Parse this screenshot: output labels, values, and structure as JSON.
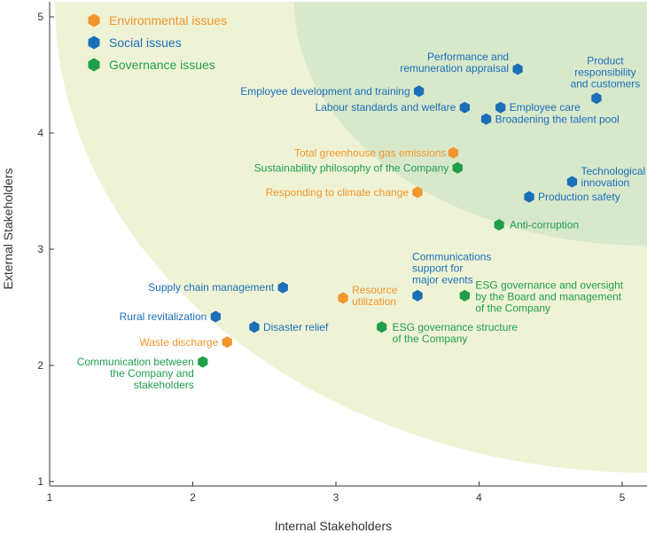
{
  "chart_data": {
    "type": "scatter",
    "title": "",
    "xlabel": "Internal Stakeholders",
    "ylabel": "External Stakeholders",
    "xlim": [
      1,
      5.2
    ],
    "ylim": [
      1,
      5.2
    ],
    "x_ticks": [
      "1",
      "2",
      "3",
      "4",
      "5"
    ],
    "y_ticks": [
      "1",
      "2",
      "3",
      "4",
      "5"
    ],
    "grid": false,
    "legend_position": "top-left",
    "colors": {
      "environmental": "#f0962c",
      "social": "#1a6fb8",
      "governance": "#1f9e4c",
      "zone_outer": "#eff3d6",
      "zone_inner": "#d8e8cb",
      "axis": "#333333"
    },
    "series": [
      {
        "name": "Environmental issues",
        "key": "environmental",
        "points": [
          {
            "label": "Total greenhouse gas emissions",
            "x": 3.82,
            "y": 3.83
          },
          {
            "label": "Responding to climate change",
            "x": 3.57,
            "y": 3.49
          },
          {
            "label": "Resource utilization",
            "x": 3.05,
            "y": 2.58
          },
          {
            "label": "Waste discharge",
            "x": 2.24,
            "y": 2.2
          }
        ]
      },
      {
        "name": "Social issues",
        "key": "social",
        "points": [
          {
            "label": "Performance and remuneration appraisal",
            "x": 4.27,
            "y": 4.55
          },
          {
            "label": "Product responsibility and customers",
            "x": 4.82,
            "y": 4.3
          },
          {
            "label": "Employee development and training",
            "x": 3.58,
            "y": 4.36
          },
          {
            "label": "Labour standards and welfare",
            "x": 3.9,
            "y": 4.22
          },
          {
            "label": "Employee care",
            "x": 4.15,
            "y": 4.22
          },
          {
            "label": "Broadening the talent pool",
            "x": 4.05,
            "y": 4.12
          },
          {
            "label": "Technological innovation",
            "x": 4.65,
            "y": 3.58
          },
          {
            "label": "Production safety",
            "x": 4.35,
            "y": 3.45
          },
          {
            "label": "Supply chain management",
            "x": 2.63,
            "y": 2.67
          },
          {
            "label": "Communications support for major events",
            "x": 3.57,
            "y": 2.6
          },
          {
            "label": "Rural revitalization",
            "x": 2.16,
            "y": 2.42
          },
          {
            "label": "Disaster relief",
            "x": 2.43,
            "y": 2.33
          }
        ]
      },
      {
        "name": "Governance issues",
        "key": "governance",
        "points": [
          {
            "label": "Sustainability philosophy of the Company",
            "x": 3.85,
            "y": 3.7
          },
          {
            "label": "Anti-corruption",
            "x": 4.14,
            "y": 3.21
          },
          {
            "label": "ESG governance and oversight by the Board and management of the Company",
            "x": 3.9,
            "y": 2.6
          },
          {
            "label": "ESG governance structure of the Company",
            "x": 3.32,
            "y": 2.33
          },
          {
            "label": "Communication between the Company and stakeholders",
            "x": 2.07,
            "y": 2.03
          }
        ]
      }
    ]
  }
}
